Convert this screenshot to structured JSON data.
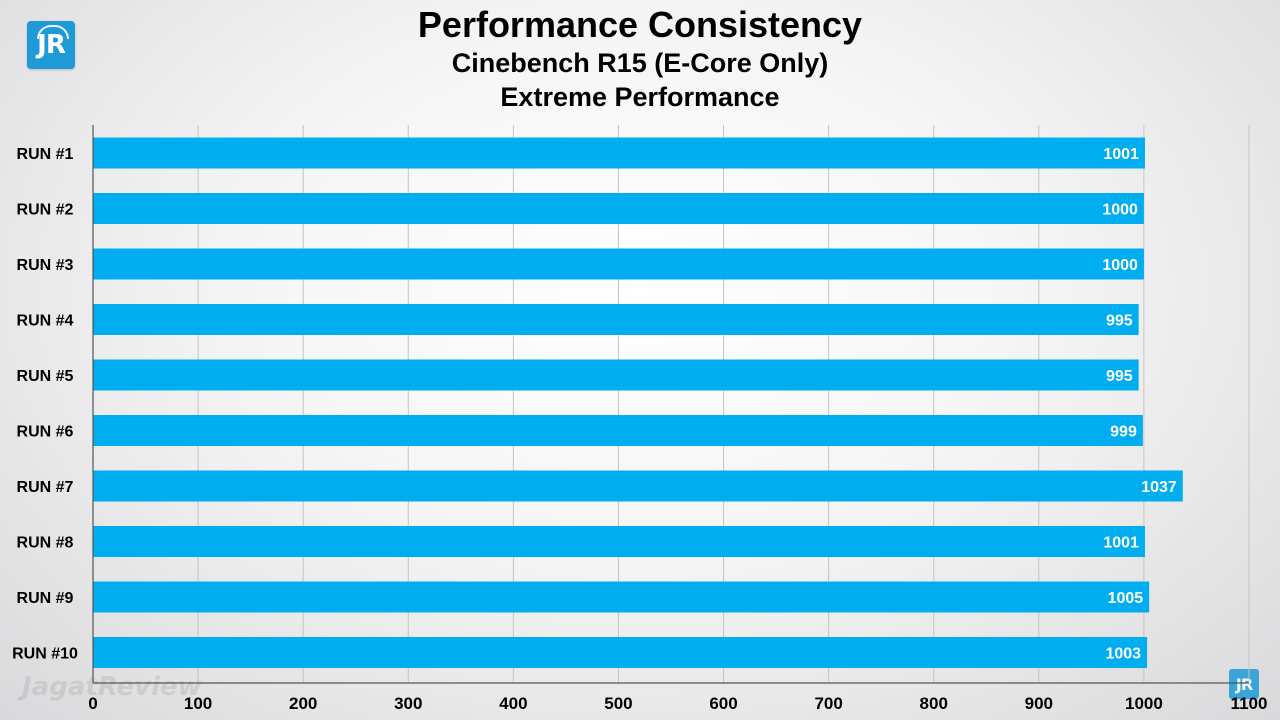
{
  "brand": {
    "logo_text": "JR",
    "watermark": "JagatReview"
  },
  "chart_data": {
    "type": "bar",
    "orientation": "horizontal",
    "title": "Performance Consistency",
    "subtitle_lines": [
      "Cinebench R15 (E-Core Only)",
      "Extreme Performance"
    ],
    "categories": [
      "RUN #1",
      "RUN #2",
      "RUN #3",
      "RUN #4",
      "RUN #5",
      "RUN #6",
      "RUN #7",
      "RUN #8",
      "RUN #9",
      "RUN #10"
    ],
    "values": [
      1001,
      1000,
      1000,
      995,
      995,
      999,
      1037,
      1001,
      1005,
      1003
    ],
    "xlim": [
      0,
      1100
    ],
    "xticks": [
      0,
      100,
      200,
      300,
      400,
      500,
      600,
      700,
      800,
      900,
      1000,
      1100
    ],
    "grid": true,
    "bar_color": "#00aeef",
    "label_color": "#ffffff",
    "xlabel": "",
    "ylabel": ""
  }
}
